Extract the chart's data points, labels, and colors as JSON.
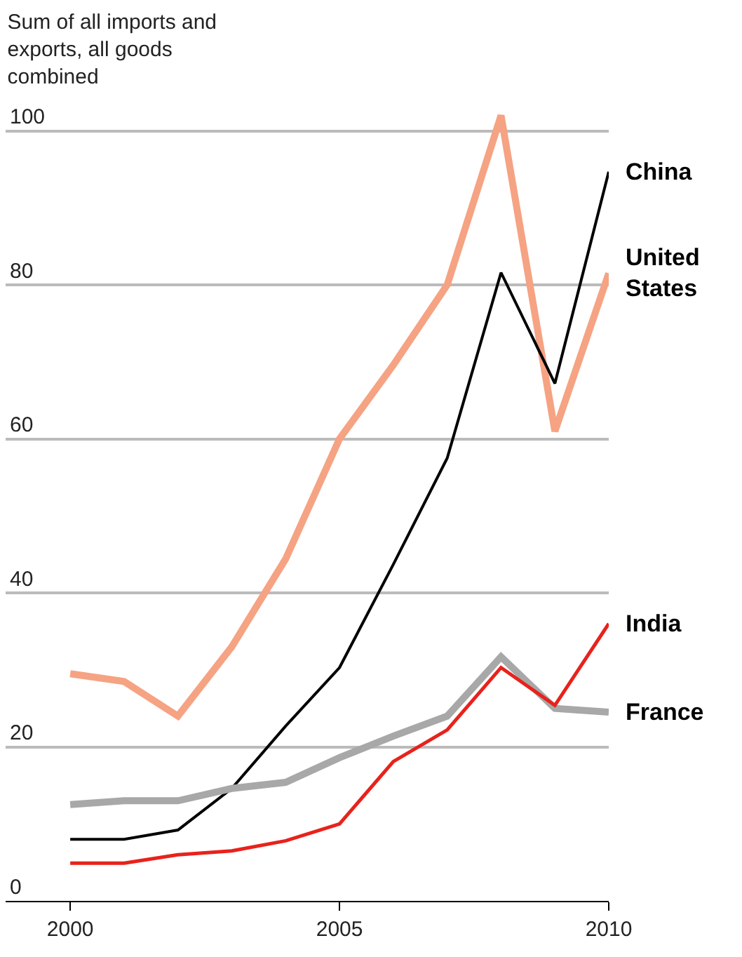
{
  "chart_data": {
    "type": "line",
    "title": "Sum of all imports and exports, all goods combined",
    "x": [
      2000,
      2001,
      2002,
      2003,
      2004,
      2005,
      2006,
      2007,
      2008,
      2009,
      2010
    ],
    "series": [
      {
        "name": "United States",
        "color": "#f5a383",
        "values": [
          29.5,
          28.5,
          24,
          33,
          44.4,
          60,
          69.6,
          80,
          102,
          61,
          81.5
        ]
      },
      {
        "name": "China",
        "color": "#000000",
        "values": [
          8,
          8,
          9.2,
          14.6,
          22.7,
          30.3,
          43.7,
          57.5,
          81.6,
          67.2,
          94.7
        ]
      },
      {
        "name": "France",
        "color": "#a8a8a8",
        "values": [
          12.5,
          13,
          13,
          14.6,
          15.4,
          18.6,
          21.4,
          24,
          31.7,
          25,
          24.5
        ]
      },
      {
        "name": "India",
        "color": "#e8221c",
        "values": [
          4.9,
          4.9,
          6,
          6.5,
          7.8,
          10,
          18.1,
          22.2,
          30.3,
          25.4,
          36
        ]
      }
    ],
    "xlim": [
      1998.8,
      2010
    ],
    "xticks": [
      2000,
      2005,
      2010
    ],
    "ylim": [
      0,
      117
    ],
    "yticks": [
      0,
      20,
      40,
      60,
      80,
      100
    ],
    "grid": "y",
    "legend": false,
    "marker": "none",
    "line_style": "solid"
  }
}
